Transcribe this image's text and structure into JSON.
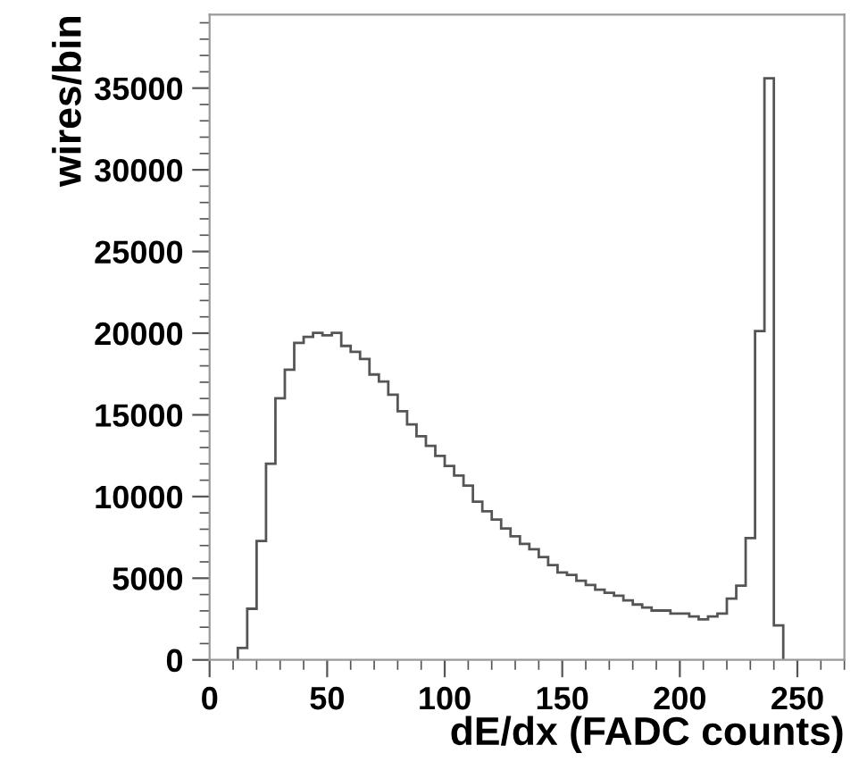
{
  "chart_data": {
    "type": "histogram",
    "xlabel": "dE/dx (FADC counts)",
    "ylabel": "wires/bin",
    "color": "#555555",
    "bins": [
      12,
      16,
      20,
      24,
      28,
      32,
      36,
      40,
      44,
      48,
      52,
      56,
      60,
      64,
      68,
      72,
      76,
      80,
      84,
      88,
      92,
      96,
      100,
      104,
      108,
      112,
      116,
      120,
      124,
      128,
      132,
      136,
      140,
      144,
      148,
      152,
      156,
      160,
      164,
      168,
      172,
      176,
      180,
      184,
      188,
      192,
      196,
      200,
      204,
      208,
      212,
      216,
      220,
      224,
      228,
      232,
      236,
      240,
      244
    ],
    "values": [
      730,
      3130,
      7280,
      12010,
      16020,
      17760,
      19400,
      19770,
      20020,
      19870,
      20020,
      19220,
      18860,
      18420,
      17470,
      17040,
      16230,
      15220,
      14410,
      13690,
      13100,
      12490,
      11870,
      11280,
      10670,
      9680,
      9100,
      8590,
      8040,
      7570,
      7100,
      6770,
      6300,
      5800,
      5350,
      5200,
      4840,
      4590,
      4300,
      4110,
      3930,
      3640,
      3390,
      3200,
      3020,
      3020,
      2840,
      2840,
      2660,
      2480,
      2660,
      2840,
      3750,
      4550,
      7460,
      20130,
      35600,
      2110
    ],
    "xlim": [
      0,
      270
    ],
    "xticks": [
      0,
      50,
      100,
      150,
      200,
      250
    ],
    "ylim": [
      0,
      39500
    ],
    "yticks": [
      0,
      5000,
      10000,
      15000,
      20000,
      25000,
      30000,
      35000
    ],
    "grid": false,
    "legend": false
  }
}
